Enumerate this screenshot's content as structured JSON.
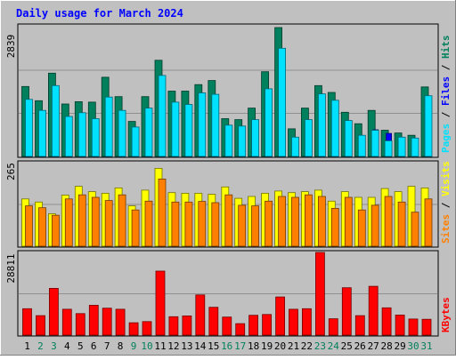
{
  "title": "Daily usage for March 2024",
  "colors": {
    "hits": "#00805c",
    "files": "#0000ff",
    "pages": "#00e0ff",
    "visits": "#ffff00",
    "sites": "#ff8000",
    "kbytes": "#ff0000",
    "weekend_label": "#00805c",
    "weekday_label": "#000000",
    "background": "#c0c0c0"
  },
  "chart_data": [
    {
      "type": "bar",
      "name": "hits-files-pages",
      "axis_max_label": "2839",
      "ylim": [
        0,
        2839
      ],
      "categories": [
        "1",
        "2",
        "3",
        "4",
        "5",
        "6",
        "7",
        "8",
        "9",
        "10",
        "11",
        "12",
        "13",
        "14",
        "15",
        "16",
        "17",
        "18",
        "19",
        "20",
        "21",
        "22",
        "23",
        "24",
        "25",
        "26",
        "27",
        "28",
        "29",
        "30",
        "31"
      ],
      "weekend_days": [
        "2",
        "3",
        "9",
        "10",
        "16",
        "17",
        "23",
        "24",
        "30",
        "31"
      ],
      "legend": [
        "Pages",
        "Files",
        "Hits"
      ],
      "series": [
        {
          "name": "Hits",
          "values": [
            1520,
            1210,
            1810,
            1140,
            1190,
            1180,
            1720,
            1300,
            760,
            1300,
            2090,
            1420,
            1420,
            1560,
            1650,
            820,
            800,
            1050,
            1840,
            2800,
            600,
            1050,
            1540,
            1390,
            960,
            710,
            1000,
            570,
            510,
            460,
            1510
          ]
        },
        {
          "name": "Files",
          "values": [
            780,
            620,
            680,
            560,
            600,
            520,
            760,
            610,
            430,
            600,
            820,
            620,
            650,
            660,
            700,
            470,
            450,
            560,
            760,
            880,
            400,
            540,
            700,
            660,
            560,
            400,
            580,
            500,
            380,
            350,
            640
          ]
        },
        {
          "name": "Pages",
          "values": [
            1240,
            1000,
            1540,
            870,
            950,
            820,
            1290,
            1000,
            640,
            1050,
            1760,
            1180,
            1130,
            1380,
            1350,
            680,
            660,
            800,
            1470,
            2350,
            420,
            800,
            1360,
            1220,
            780,
            460,
            570,
            340,
            420,
            400,
            1320
          ]
        }
      ]
    },
    {
      "type": "bar",
      "name": "visits-sites",
      "axis_max_label": "265",
      "ylim": [
        0,
        265
      ],
      "categories": [
        "1",
        "2",
        "3",
        "4",
        "5",
        "6",
        "7",
        "8",
        "9",
        "10",
        "11",
        "12",
        "13",
        "14",
        "15",
        "16",
        "17",
        "18",
        "19",
        "20",
        "21",
        "22",
        "23",
        "24",
        "25",
        "26",
        "27",
        "28",
        "29",
        "30",
        "31"
      ],
      "legend": [
        "Sites",
        "Visits"
      ],
      "series": [
        {
          "name": "Visits",
          "values": [
            150,
            140,
            103,
            162,
            190,
            173,
            168,
            185,
            128,
            178,
            247,
            170,
            168,
            168,
            165,
            188,
            152,
            158,
            168,
            175,
            170,
            173,
            178,
            143,
            173,
            155,
            155,
            183,
            173,
            190,
            185
          ]
        },
        {
          "name": "Sites",
          "values": [
            128,
            122,
            98,
            150,
            163,
            155,
            145,
            163,
            115,
            143,
            213,
            140,
            140,
            142,
            138,
            163,
            130,
            128,
            143,
            158,
            155,
            163,
            158,
            120,
            155,
            115,
            130,
            158,
            140,
            108,
            150
          ]
        }
      ]
    },
    {
      "type": "bar",
      "name": "kbytes",
      "axis_max_label": "28811",
      "ylim": [
        0,
        28811
      ],
      "categories": [
        "1",
        "2",
        "3",
        "4",
        "5",
        "6",
        "7",
        "8",
        "9",
        "10",
        "11",
        "12",
        "13",
        "14",
        "15",
        "16",
        "17",
        "18",
        "19",
        "20",
        "21",
        "22",
        "23",
        "24",
        "25",
        "26",
        "27",
        "28",
        "29",
        "30",
        "31"
      ],
      "legend": [
        "KBytes"
      ],
      "series": [
        {
          "name": "KBytes",
          "values": [
            9200,
            6800,
            16300,
            9000,
            7500,
            10400,
            9400,
            9000,
            4300,
            4700,
            22300,
            6400,
            6700,
            14000,
            9700,
            6300,
            4000,
            6900,
            7200,
            13300,
            9000,
            9200,
            28800,
            5700,
            16500,
            6800,
            17000,
            9500,
            7000,
            5600,
            5500
          ]
        }
      ]
    }
  ]
}
